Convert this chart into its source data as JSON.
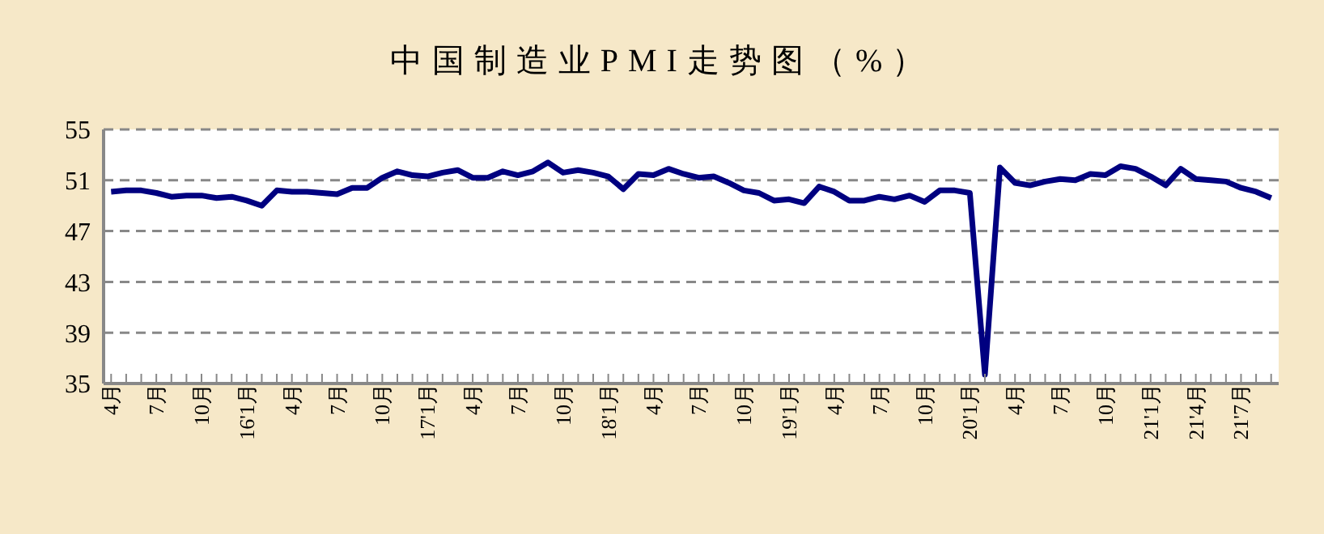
{
  "chart_data": {
    "type": "line",
    "title": "中国制造业PMI走势图（%）",
    "categories": [
      "4月",
      null,
      null,
      "7月",
      null,
      null,
      "10月",
      null,
      null,
      "16'1月",
      null,
      null,
      "4月",
      null,
      null,
      "7月",
      null,
      null,
      "10月",
      null,
      null,
      "17'1月",
      null,
      null,
      "4月",
      null,
      null,
      "7月",
      null,
      null,
      "10月",
      null,
      null,
      "18'1月",
      null,
      null,
      "4月",
      null,
      null,
      "7月",
      null,
      null,
      "10月",
      null,
      null,
      "19'1月",
      null,
      null,
      "4月",
      null,
      null,
      "7月",
      null,
      null,
      "10月",
      null,
      null,
      "20'1月",
      null,
      null,
      "4月",
      null,
      null,
      "7月",
      null,
      null,
      "10月",
      null,
      null,
      "21'1月",
      null,
      null,
      "21'4月",
      null,
      null,
      "21'7月",
      null,
      null
    ],
    "series": [
      {
        "color": "#000080",
        "values": [
          50.1,
          50.2,
          50.2,
          50.0,
          49.7,
          49.8,
          49.8,
          49.6,
          49.7,
          49.4,
          49.0,
          50.2,
          50.1,
          50.1,
          50.0,
          49.9,
          50.4,
          50.4,
          51.2,
          51.7,
          51.4,
          51.3,
          51.6,
          51.8,
          51.2,
          51.2,
          51.7,
          51.4,
          51.7,
          52.4,
          51.6,
          51.8,
          51.6,
          51.3,
          50.3,
          51.5,
          51.4,
          51.9,
          51.5,
          51.2,
          51.3,
          50.8,
          50.2,
          50.0,
          49.4,
          49.5,
          49.2,
          50.5,
          50.1,
          49.4,
          49.4,
          49.7,
          49.5,
          49.8,
          49.3,
          50.2,
          50.2,
          50.0,
          35.7,
          52.0,
          50.8,
          50.6,
          50.9,
          51.1,
          51.0,
          51.5,
          51.4,
          52.1,
          51.9,
          51.3,
          50.6,
          51.9,
          51.1,
          51.0,
          50.9,
          50.4,
          50.1,
          49.6
        ]
      }
    ],
    "ylim": [
      35,
      55
    ],
    "yticks": [
      35,
      39,
      43,
      47,
      51,
      55
    ],
    "grid": "y",
    "marker": "none",
    "line_style": "solid"
  }
}
